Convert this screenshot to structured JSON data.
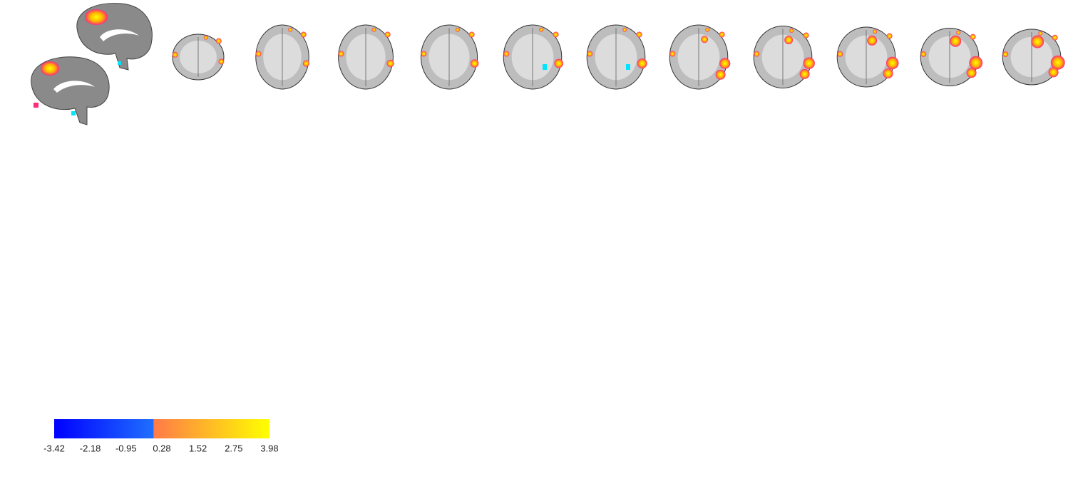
{
  "colorbar": {
    "lim": [
      -3.42,
      3.98
    ],
    "ticks": [
      -3.42,
      -2.18,
      -0.95,
      0.28,
      1.52,
      2.75,
      3.98
    ],
    "split": 0,
    "negative_colors": [
      "#0000ff",
      "#1f6fff"
    ],
    "positive_colors": [
      "#ff7a48",
      "#ffff00"
    ]
  }
}
